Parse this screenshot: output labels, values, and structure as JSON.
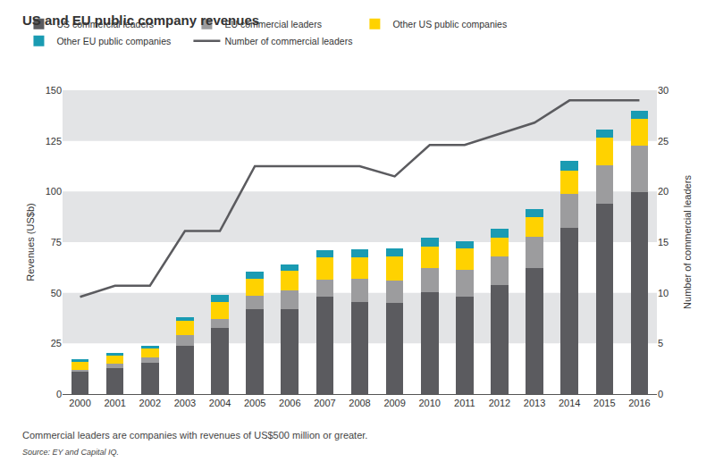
{
  "chart_data": {
    "type": "bar",
    "title": "US and EU public company revenues",
    "y_label": "Revenues (US$b)",
    "y2_label": "Number of commercial leaders",
    "annotations": [
      "Commercial leaders are companies with revenues of US$500 million or greater.",
      "Source: EY and Capital IQ."
    ],
    "categories": [
      "2000",
      "2001",
      "2002",
      "2003",
      "2004",
      "2005",
      "2006",
      "2007",
      "2008",
      "2009",
      "2010",
      "2011",
      "2012",
      "2013",
      "2014",
      "2015",
      "2016"
    ],
    "stacked": true,
    "grid": true,
    "legend": "top",
    "ylim": [
      0,
      150
    ],
    "yticks": [
      0,
      25,
      50,
      75,
      100,
      125,
      150
    ],
    "y2lim": [
      0,
      30
    ],
    "y2ticks": [
      0,
      5,
      10,
      15,
      20,
      25,
      30
    ],
    "series": [
      {
        "name": "US commercial leaders",
        "color": "#5b5b5f",
        "type": "bar",
        "values": [
          11,
          13,
          15.5,
          24,
          32.5,
          42,
          42,
          48,
          45.5,
          45,
          50.5,
          48,
          54,
          62,
          82,
          94,
          99.5
        ]
      },
      {
        "name": "EU commercial leaders",
        "color": "#9c9c9e",
        "type": "bar",
        "values": [
          1,
          2,
          2.5,
          5,
          4.5,
          6.5,
          9,
          8.5,
          11.5,
          11,
          11.5,
          13.5,
          14,
          15.5,
          17,
          19,
          23
        ]
      },
      {
        "name": "Other US public companies",
        "color": "#ffd200",
        "type": "bar",
        "values": [
          4,
          4,
          4.5,
          7,
          8.5,
          8.5,
          10,
          11,
          10.5,
          12,
          11,
          10.5,
          9,
          10,
          11.5,
          13.5,
          13.5
        ]
      },
      {
        "name": "Other EU public companies",
        "color": "#1a9bb2",
        "type": "bar",
        "values": [
          1.3,
          1.5,
          1.5,
          2,
          3.5,
          3.5,
          3,
          3.5,
          4,
          4,
          4,
          3.5,
          4.5,
          4,
          4.5,
          4,
          4
        ]
      },
      {
        "name": "Number of commercial leaders",
        "color": "#5b5b5f",
        "type": "line",
        "axis": "y2",
        "values": [
          9.6,
          10.7,
          10.7,
          16.1,
          16.1,
          22.5,
          22.5,
          22.5,
          22.5,
          21.5,
          24.6,
          24.6,
          25.7,
          26.8,
          29,
          29,
          29
        ]
      }
    ]
  }
}
